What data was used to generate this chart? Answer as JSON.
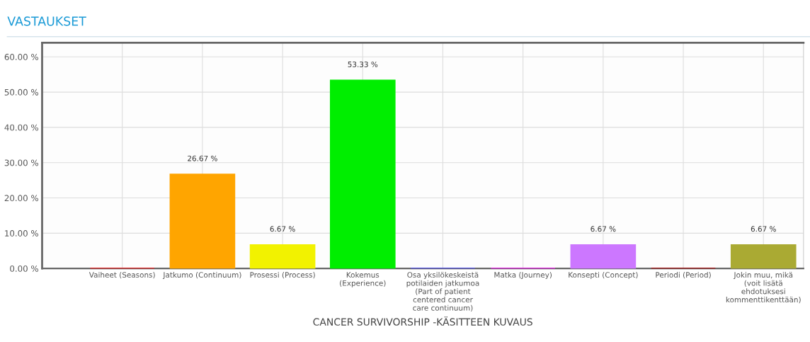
{
  "chart_data": {
    "type": "bar",
    "title": "VASTAUKSET",
    "xlabel": "CANCER SURVIVORSHIP -KÄSITTEEN KUVAUS",
    "categories": [
      "Vaiheet (Seasons)",
      "Jatkumo (Continuum)",
      "Prosessi (Process)",
      "Kokemus (Experience)",
      "Osa yksilökeskeistä potilaiden jatkumoa (Part of patient centered cancer care continuum)",
      "Matka (Journey)",
      "Konsepti (Concept)",
      "Periodi (Period)",
      "Jokin muu, mikä (voit lisätä ehdotuksesi kommenttikenttään)"
    ],
    "values": [
      0,
      26.67,
      6.67,
      53.33,
      0,
      0,
      6.67,
      0,
      6.67
    ],
    "value_labels": [
      null,
      "26.67 %",
      "6.67 %",
      "53.33 %",
      null,
      null,
      "6.67 %",
      null,
      "6.67 %"
    ],
    "colors": [
      "#e02020",
      "#ffa500",
      "#f2f200",
      "#00ee00",
      "#5050e0",
      "#e020e0",
      "#cc77ff",
      "#a01010",
      "#aaaa33"
    ],
    "ylim": [
      0,
      64
    ],
    "yticks": [
      {
        "value": 0,
        "label": "0.00 %"
      },
      {
        "value": 10,
        "label": "10.00 %"
      },
      {
        "value": 20,
        "label": "20.00 %"
      },
      {
        "value": 30,
        "label": "30.00 %"
      },
      {
        "value": 40,
        "label": "40.00 %"
      },
      {
        "value": 50,
        "label": "50.00 %"
      },
      {
        "value": 60,
        "label": "60.00 %"
      }
    ],
    "grid": true
  }
}
